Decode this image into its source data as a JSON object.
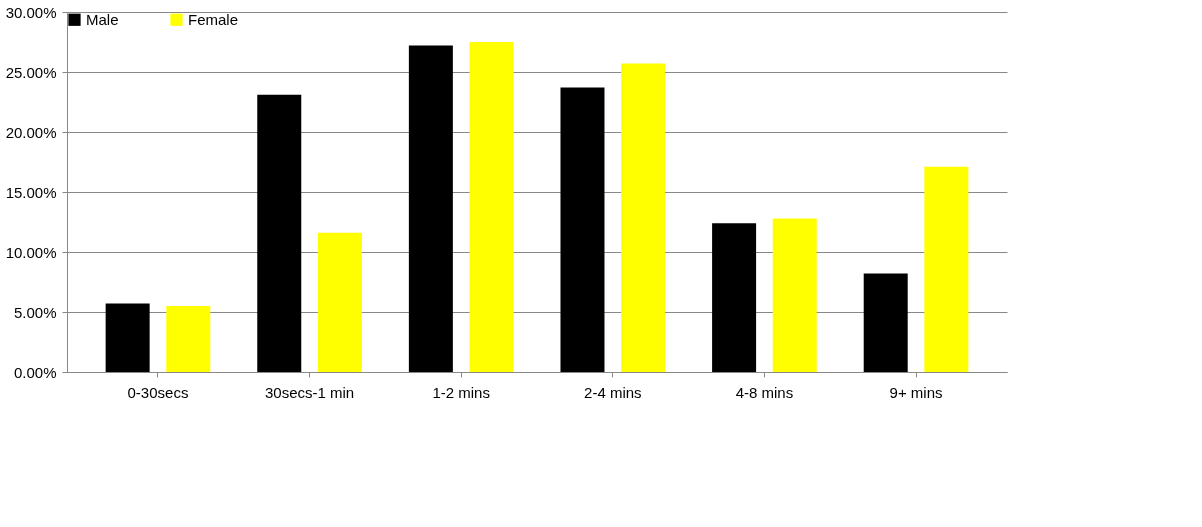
{
  "chart_data": {
    "type": "bar",
    "categories": [
      "0-30secs",
      "30secs-1 min",
      "1-2 mins",
      "2-4 mins",
      "4-8 mins",
      "9+ mins"
    ],
    "series": [
      {
        "name": "Male",
        "color": "#000000",
        "values": [
          5.7,
          23.1,
          27.2,
          23.7,
          12.4,
          8.2
        ]
      },
      {
        "name": "Female",
        "color": "#ffff00",
        "values": [
          5.5,
          11.6,
          27.5,
          25.7,
          12.8,
          17.1
        ]
      }
    ],
    "ylim": [
      0,
      30
    ],
    "yticks": [
      {
        "value": 0,
        "label": "0.00%"
      },
      {
        "value": 5,
        "label": "5.00%"
      },
      {
        "value": 10,
        "label": "10.00%"
      },
      {
        "value": 15,
        "label": "15.00%"
      },
      {
        "value": 20,
        "label": "20.00%"
      },
      {
        "value": 25,
        "label": "25.00%"
      },
      {
        "value": 30,
        "label": "30.00%"
      }
    ],
    "grid": "y",
    "legend": "top left"
  }
}
